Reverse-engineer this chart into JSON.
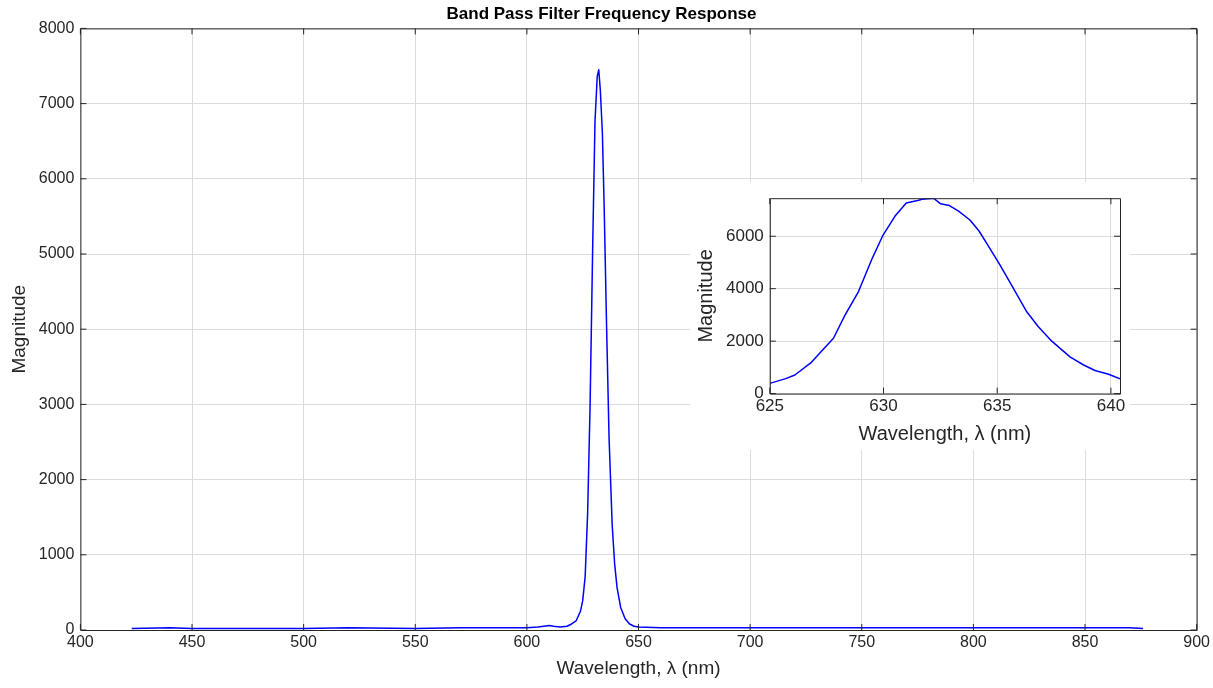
{
  "chart_data": [
    {
      "type": "line",
      "title": "Band Pass Filter Frequency Response",
      "xlabel": "Wavelength, λ (nm)",
      "ylabel": "Magnitude",
      "xlim": [
        400,
        900
      ],
      "ylim": [
        0,
        8000
      ],
      "xticks": [
        400,
        450,
        500,
        550,
        600,
        650,
        700,
        750,
        800,
        850,
        900
      ],
      "yticks": [
        0,
        1000,
        2000,
        3000,
        4000,
        5000,
        6000,
        7000,
        8000
      ],
      "grid": true,
      "legend": false,
      "marker": "none",
      "line_style": "solid",
      "series": [
        {
          "color": "#0000ff",
          "x": [
            423,
            440,
            450,
            470,
            500,
            520,
            550,
            570,
            590,
            600,
            605,
            610,
            612,
            615,
            618,
            620,
            622,
            624,
            625,
            626.1,
            627.2,
            628.3,
            629.5,
            630.5,
            631.5,
            632.2,
            632.9,
            633.8,
            634.6,
            635.7,
            636.8,
            638.2,
            639.3,
            640.4,
            642,
            644,
            646,
            648,
            650,
            660,
            680,
            700,
            720,
            750,
            780,
            800,
            820,
            850,
            870,
            876
          ],
          "values": [
            20,
            30,
            20,
            20,
            20,
            30,
            20,
            30,
            30,
            30,
            40,
            60,
            50,
            40,
            50,
            80,
            120,
            250,
            390,
            710,
            1550,
            2980,
            5150,
            6760,
            7360,
            7450,
            7170,
            6620,
            5640,
            4030,
            2560,
            1400,
            880,
            560,
            300,
            150,
            80,
            50,
            40,
            30,
            30,
            30,
            30,
            30,
            30,
            30,
            30,
            30,
            30,
            20
          ]
        }
      ]
    },
    {
      "type": "line",
      "xlabel": "Wavelength, λ (nm)",
      "ylabel": "Magnitude",
      "xlim": [
        625,
        640.4
      ],
      "ylim": [
        0,
        7450
      ],
      "xticks": [
        625,
        630,
        635,
        640
      ],
      "yticks": [
        0,
        2000,
        4000,
        6000
      ],
      "grid": true,
      "legend": false,
      "marker": "none",
      "line_style": "solid",
      "series": [
        {
          "color": "#0000ff",
          "x": [
            625,
            625.7,
            626.1,
            626.8,
            627.2,
            627.8,
            628.3,
            628.9,
            629.5,
            629.96,
            630.5,
            631,
            631.5,
            631.7,
            632.2,
            632.5,
            632.9,
            633.3,
            633.8,
            634.2,
            634.6,
            635.1,
            635.7,
            636.3,
            636.8,
            637.4,
            638.2,
            638.8,
            639.3,
            639.9,
            640.4
          ],
          "values": [
            390,
            570,
            710,
            1170,
            1550,
            2110,
            2980,
            3890,
            5150,
            6010,
            6760,
            7270,
            7360,
            7410,
            7450,
            7240,
            7170,
            6960,
            6620,
            6200,
            5640,
            4940,
            4030,
            3120,
            2560,
            2000,
            1400,
            1090,
            880,
            740,
            560
          ]
        }
      ]
    }
  ]
}
